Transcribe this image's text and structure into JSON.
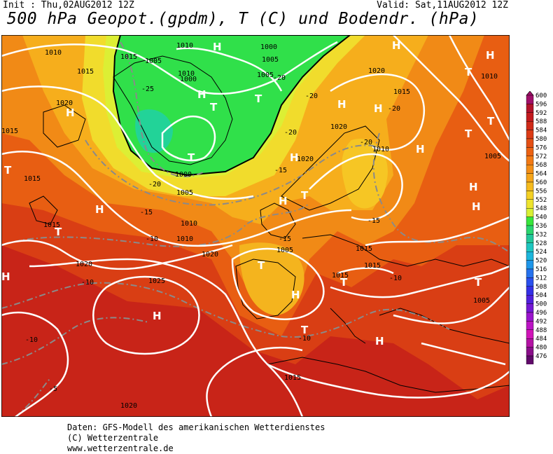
{
  "header": {
    "init": "Init : Thu,02AUG2012 12Z",
    "valid": "Valid: Sat,11AUG2012 12Z",
    "title": "500 hPa Geopot.(gpdm), T (C) und Bodendr. (hPa)"
  },
  "footer": {
    "line1": "Daten: GFS-Modell des amerikanischen Wetterdienstes",
    "line2": "(C) Wetterzentrale",
    "line3": "www.wetterzentrale.de"
  },
  "colors": {
    "darkred": "#b5171a",
    "red": "#cc2f14",
    "redorange": "#dc4a12",
    "orange": "#ea6c10",
    "lightorange": "#f3931a",
    "amber": "#f7b31c",
    "yellow": "#f5d82e",
    "paleyellow": "#eef03a",
    "green": "#2ee24a",
    "teal": "#22d79a"
  },
  "legend": {
    "values": [
      "600",
      "596",
      "592",
      "588",
      "584",
      "580",
      "576",
      "572",
      "568",
      "564",
      "560",
      "556",
      "552",
      "548",
      "540",
      "536",
      "532",
      "528",
      "524",
      "520",
      "516",
      "512",
      "508",
      "504",
      "500",
      "496",
      "492",
      "488",
      "484",
      "480",
      "476"
    ],
    "colors": [
      "#a0106a",
      "#b3122a",
      "#c21a1e",
      "#cf2a18",
      "#dc3c16",
      "#e44f14",
      "#ec6212",
      "#f27a14",
      "#f48f16",
      "#f6a51a",
      "#f6bb1e",
      "#f4d024",
      "#eee42e",
      "#d8f034",
      "#38e63c",
      "#2ad56e",
      "#22c79a",
      "#1ec6c0",
      "#1cb6dc",
      "#1e96ea",
      "#2672ee",
      "#2a50ee",
      "#3430e6",
      "#5020dc",
      "#7418d4",
      "#9a14cc",
      "#bb14c4",
      "#d014b8",
      "#b412a4",
      "#8a0e8a",
      "#600a6a"
    ]
  },
  "map_labels": {
    "isobars": [
      {
        "text": "1010"
      },
      {
        "text": "1015"
      },
      {
        "text": "1015"
      },
      {
        "text": "1020"
      },
      {
        "text": "1015"
      },
      {
        "text": "1010"
      },
      {
        "text": "1000"
      },
      {
        "text": "1005"
      },
      {
        "text": "1010"
      },
      {
        "text": "1000"
      },
      {
        "text": "1005"
      },
      {
        "text": "1005"
      },
      {
        "text": "1000"
      },
      {
        "text": "1005"
      },
      {
        "text": "1020"
      },
      {
        "text": "1015"
      },
      {
        "text": "1020"
      },
      {
        "text": "1010"
      },
      {
        "text": "1010"
      },
      {
        "text": "1005"
      },
      {
        "text": "1015"
      },
      {
        "text": "1020"
      },
      {
        "text": "1015"
      },
      {
        "text": "1010"
      },
      {
        "text": "1010"
      },
      {
        "text": "1020"
      },
      {
        "text": "1015"
      },
      {
        "text": "1020"
      },
      {
        "text": "1025"
      },
      {
        "text": "1015"
      },
      {
        "text": "1015"
      },
      {
        "text": "1005"
      },
      {
        "text": "1015"
      },
      {
        "text": "1020"
      },
      {
        "text": "1005"
      }
    ],
    "temps": [
      {
        "text": "-25"
      },
      {
        "text": "-20"
      },
      {
        "text": "-20"
      },
      {
        "text": "-20"
      },
      {
        "text": "-20"
      },
      {
        "text": "-15"
      },
      {
        "text": "-15"
      },
      {
        "text": "-10"
      },
      {
        "text": "-15"
      },
      {
        "text": "-20"
      },
      {
        "text": "-15"
      },
      {
        "text": "-10"
      },
      {
        "text": "-10"
      },
      {
        "text": "-10"
      },
      {
        "text": "-10"
      },
      {
        "text": "-5"
      },
      {
        "text": "-20"
      }
    ],
    "pressure_centers": [
      {
        "text": "H"
      },
      {
        "text": "H"
      },
      {
        "text": "H"
      },
      {
        "text": "T"
      },
      {
        "text": "H"
      },
      {
        "text": "T"
      },
      {
        "text": "T"
      },
      {
        "text": "H"
      },
      {
        "text": "T"
      },
      {
        "text": "T"
      },
      {
        "text": "H"
      },
      {
        "text": "H"
      },
      {
        "text": "T"
      },
      {
        "text": "H"
      },
      {
        "text": "T"
      },
      {
        "text": "H"
      },
      {
        "text": "T"
      },
      {
        "text": "H"
      },
      {
        "text": "H"
      },
      {
        "text": "H"
      },
      {
        "text": "T"
      },
      {
        "text": "H"
      },
      {
        "text": "T"
      },
      {
        "text": "H"
      },
      {
        "text": "T"
      },
      {
        "text": "H"
      },
      {
        "text": "T"
      },
      {
        "text": "H"
      },
      {
        "text": "H"
      },
      {
        "text": "T"
      }
    ]
  }
}
